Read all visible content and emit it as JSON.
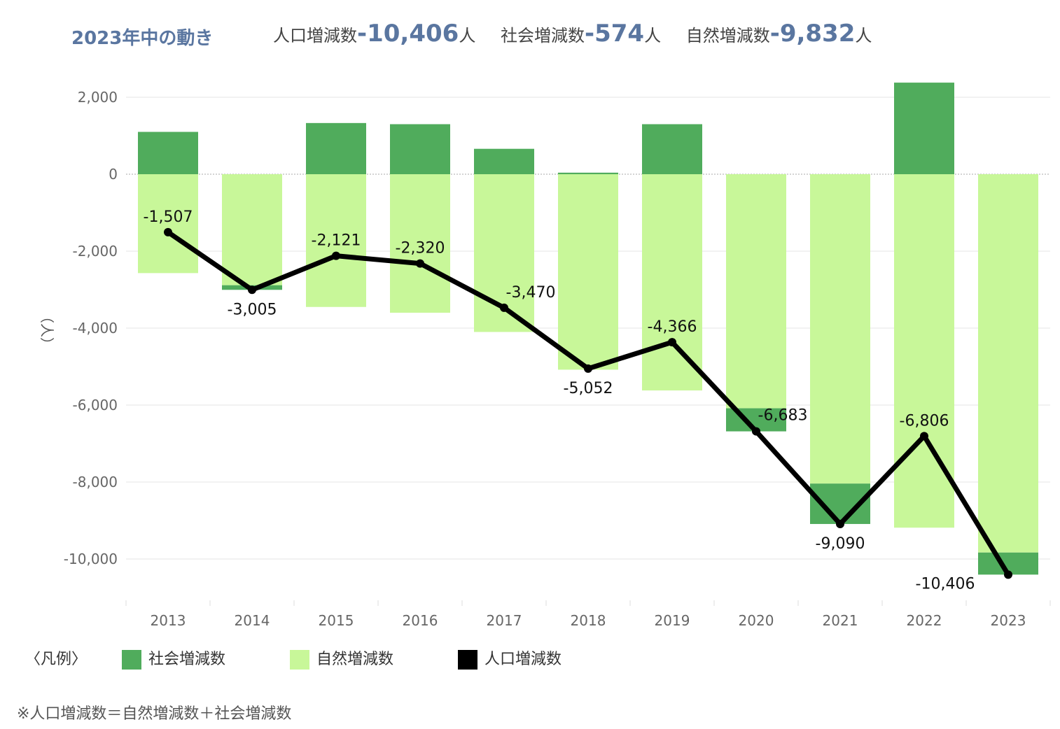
{
  "header": {
    "title": "2023年中の動き",
    "stats": [
      {
        "label": "人口増減数",
        "value": "-10,406",
        "unit": "人"
      },
      {
        "label": "社会増減数",
        "value": "-574",
        "unit": "人"
      },
      {
        "label": "自然増減数",
        "value": "-9,832",
        "unit": "人"
      }
    ]
  },
  "legend": {
    "title": "〈凡例〉",
    "items": [
      {
        "label": "社会増減数",
        "color": "#50ac5c"
      },
      {
        "label": "自然増減数",
        "color": "#c8f799"
      },
      {
        "label": "人口増減数",
        "color": "#000000"
      }
    ]
  },
  "note": "※人口増減数＝自然増減数＋社会増減数",
  "chart_data": {
    "type": "bar",
    "ylabel": "（人）",
    "ylim": [
      -11000,
      2400
    ],
    "yticks": [
      2000,
      0,
      -2000,
      -4000,
      -6000,
      -8000,
      -10000
    ],
    "ytick_labels": [
      "2,000",
      "0",
      "-2,000",
      "-4,000",
      "-6,000",
      "-8,000",
      "-10,000"
    ],
    "categories": [
      "2013",
      "2014",
      "2015",
      "2016",
      "2017",
      "2018",
      "2019",
      "2020",
      "2021",
      "2022",
      "2023"
    ],
    "series": [
      {
        "name": "社会増減数",
        "kind": "bar",
        "color": "#50ac5c",
        "values": [
          1100,
          -120,
          1330,
          1300,
          660,
          40,
          1300,
          -600,
          -1050,
          2380,
          -574
        ]
      },
      {
        "name": "自然増減数",
        "kind": "bar",
        "color": "#c8f799",
        "values": [
          -2570,
          -2885,
          -3450,
          -3600,
          -4100,
          -5080,
          -5620,
          -6083,
          -8040,
          -9186,
          -9832
        ]
      },
      {
        "name": "人口増減数",
        "kind": "line",
        "color": "#000000",
        "values": [
          -1507,
          -3005,
          -2121,
          -2320,
          -3470,
          -5052,
          -4366,
          -6683,
          -9090,
          -6806,
          -10406
        ],
        "labels": [
          "-1,507",
          "-3,005",
          "-2,121",
          "-2,320",
          "-3,470",
          "-5,052",
          "-4,366",
          "-6,683",
          "-9,090",
          "-6,806",
          "-10,406"
        ]
      }
    ]
  }
}
